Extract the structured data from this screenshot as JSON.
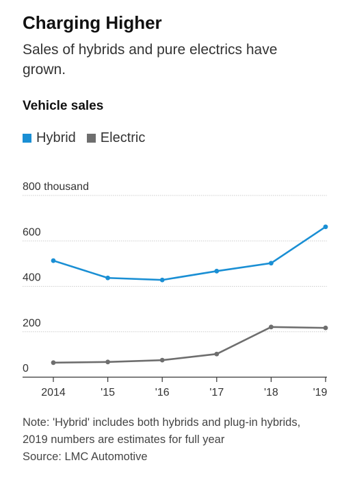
{
  "header": {
    "title": "Charging Higher",
    "subtitle": "Sales of hybrids and pure electrics have grown."
  },
  "chart_heading": "Vehicle sales",
  "colors": {
    "hybrid": "#1a8fd4",
    "electric": "#6e6e6e",
    "grid": "#cccccc",
    "axis": "#333333"
  },
  "chart_data": {
    "type": "line",
    "title": "Vehicle sales",
    "x": [
      "2014",
      "'15",
      "'16",
      "'17",
      "'18",
      "'19"
    ],
    "series": [
      {
        "name": "Hybrid",
        "values": [
          513,
          437,
          428,
          467,
          502,
          662
        ]
      },
      {
        "name": "Electric",
        "values": [
          64,
          67,
          75,
          102,
          221,
          217
        ]
      }
    ],
    "ylim": [
      0,
      800
    ],
    "yticks": [
      0,
      200,
      400,
      600,
      800
    ],
    "ytick_labels": [
      "0",
      "200",
      "400",
      "600",
      "800 thousand"
    ],
    "grid": true,
    "legend": "top-left"
  },
  "note": {
    "text": "Note: 'Hybrid' includes both hybrids and plug-in hybrids, 2019 numbers are estimates for full year",
    "source": "Source: LMC Automotive"
  }
}
